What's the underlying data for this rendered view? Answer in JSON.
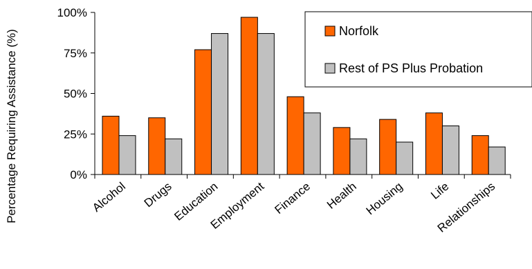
{
  "chart_data": {
    "type": "bar",
    "title": "",
    "xlabel": "",
    "ylabel": "Percentage Requiring Assistance (%)",
    "ylim": [
      0,
      100
    ],
    "yticks": [
      "0%",
      "25%",
      "50%",
      "75%",
      "100%"
    ],
    "categories": [
      "Alcohol",
      "Drugs",
      "Education",
      "Employment",
      "Finance",
      "Health",
      "Housing",
      "Life",
      "Relationships"
    ],
    "series": [
      {
        "name": "Norfolk",
        "color": "#ff6600",
        "values": [
          36,
          35,
          77,
          97,
          48,
          29,
          34,
          38,
          24
        ]
      },
      {
        "name": "Rest of PS Plus Probation",
        "color": "#c0c0c0",
        "values": [
          24,
          22,
          87,
          87,
          38,
          22,
          20,
          30,
          17
        ]
      }
    ],
    "grid": false,
    "legend_position": "top-right"
  }
}
